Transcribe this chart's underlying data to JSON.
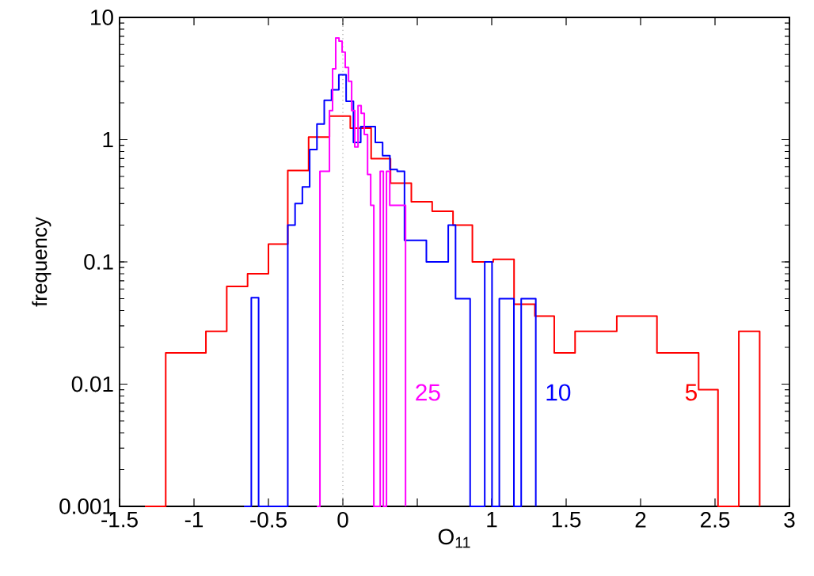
{
  "chart_data": {
    "type": "step",
    "xlabel": "O$_{11}$",
    "ylabel": "frequency",
    "log": "y",
    "xlim": [
      -1.5,
      3
    ],
    "ylim": [
      0.001,
      10
    ],
    "xticks": [
      -1.5,
      -1,
      -0.5,
      0,
      {
        "value": 0.5,
        "label": null
      },
      1,
      1.5,
      2,
      2.5,
      3
    ],
    "yticks": [
      0.001,
      0.01,
      0.1,
      1,
      10
    ],
    "ref_lines": [
      {
        "axis": "x",
        "value": 0,
        "color": "#aaaaaa",
        "line_style": "dotted"
      }
    ],
    "series": [
      {
        "name": "5",
        "color": "#ff0000",
        "x": [
          -1.33,
          -1.19,
          -1.05,
          -0.92,
          -0.78,
          -0.64,
          -0.5,
          -0.37,
          -0.23,
          -0.09,
          0.05,
          0.19,
          0.32,
          0.46,
          0.6,
          0.74,
          0.87,
          1.01,
          1.15,
          1.29,
          1.42,
          1.56,
          1.7,
          1.84,
          1.97,
          2.11,
          2.25,
          2.39,
          2.52,
          2.66,
          2.8
        ],
        "values": [
          0.001,
          0.018,
          0.018,
          0.027,
          0.063,
          0.08,
          0.14,
          0.56,
          1.05,
          1.56,
          1.24,
          0.7,
          0.44,
          0.31,
          0.26,
          0.2,
          0.1,
          0.105,
          0.045,
          0.036,
          0.018,
          0.027,
          0.027,
          0.036,
          0.036,
          0.018,
          0.018,
          0.009,
          0.001,
          0.027,
          0.001
        ]
      },
      {
        "name": "10",
        "color": "#0000ff",
        "x": [
          -0.664,
          -0.615,
          -0.566,
          -0.517,
          -0.468,
          -0.419,
          -0.37,
          -0.321,
          -0.272,
          -0.223,
          -0.174,
          -0.125,
          -0.076,
          -0.027,
          0.022,
          0.071,
          0.12,
          0.169,
          0.218,
          0.267,
          0.316,
          0.365,
          0.414,
          0.463,
          0.512,
          0.561,
          0.61,
          0.659,
          0.708,
          0.757,
          0.806,
          0.855,
          0.904,
          0.953,
          1.002,
          1.051,
          1.1,
          1.149,
          1.198,
          1.247,
          1.296
        ],
        "values": [
          0.001,
          0.051,
          0.001,
          0.001,
          0.001,
          0.001,
          0.2,
          0.3,
          0.41,
          0.83,
          1.34,
          2.1,
          2.56,
          3.4,
          2.06,
          0.95,
          1.28,
          1.28,
          0.95,
          0.74,
          0.57,
          0.55,
          0.15,
          0.15,
          0.15,
          0.1,
          0.1,
          0.1,
          0.2,
          0.05,
          0.05,
          0.001,
          0.001,
          0.1,
          0.001,
          0.05,
          0.05,
          0.001,
          0.05,
          0.05,
          0.001
        ]
      },
      {
        "name": "25",
        "color": "#ff00ff",
        "x": [
          -0.175,
          -0.154,
          -0.133,
          -0.111,
          -0.09,
          -0.069,
          -0.048,
          -0.026,
          -0.005,
          0.016,
          0.038,
          0.059,
          0.08,
          0.102,
          0.123,
          0.144,
          0.166,
          0.187,
          0.208,
          0.229,
          0.251,
          0.272,
          0.293,
          0.315,
          0.336,
          0.357,
          0.379,
          0.4,
          0.421
        ],
        "values": [
          0.001,
          0.55,
          0.55,
          0.55,
          1.73,
          3.8,
          6.8,
          6.4,
          5.2,
          3.9,
          3.0,
          1.73,
          0.87,
          1.9,
          1.64,
          1.1,
          0.52,
          0.29,
          0.001,
          0.001,
          0.55,
          0.001,
          0.55,
          0.29,
          0.29,
          0.29,
          0.29,
          0.29,
          0.001
        ]
      }
    ]
  }
}
